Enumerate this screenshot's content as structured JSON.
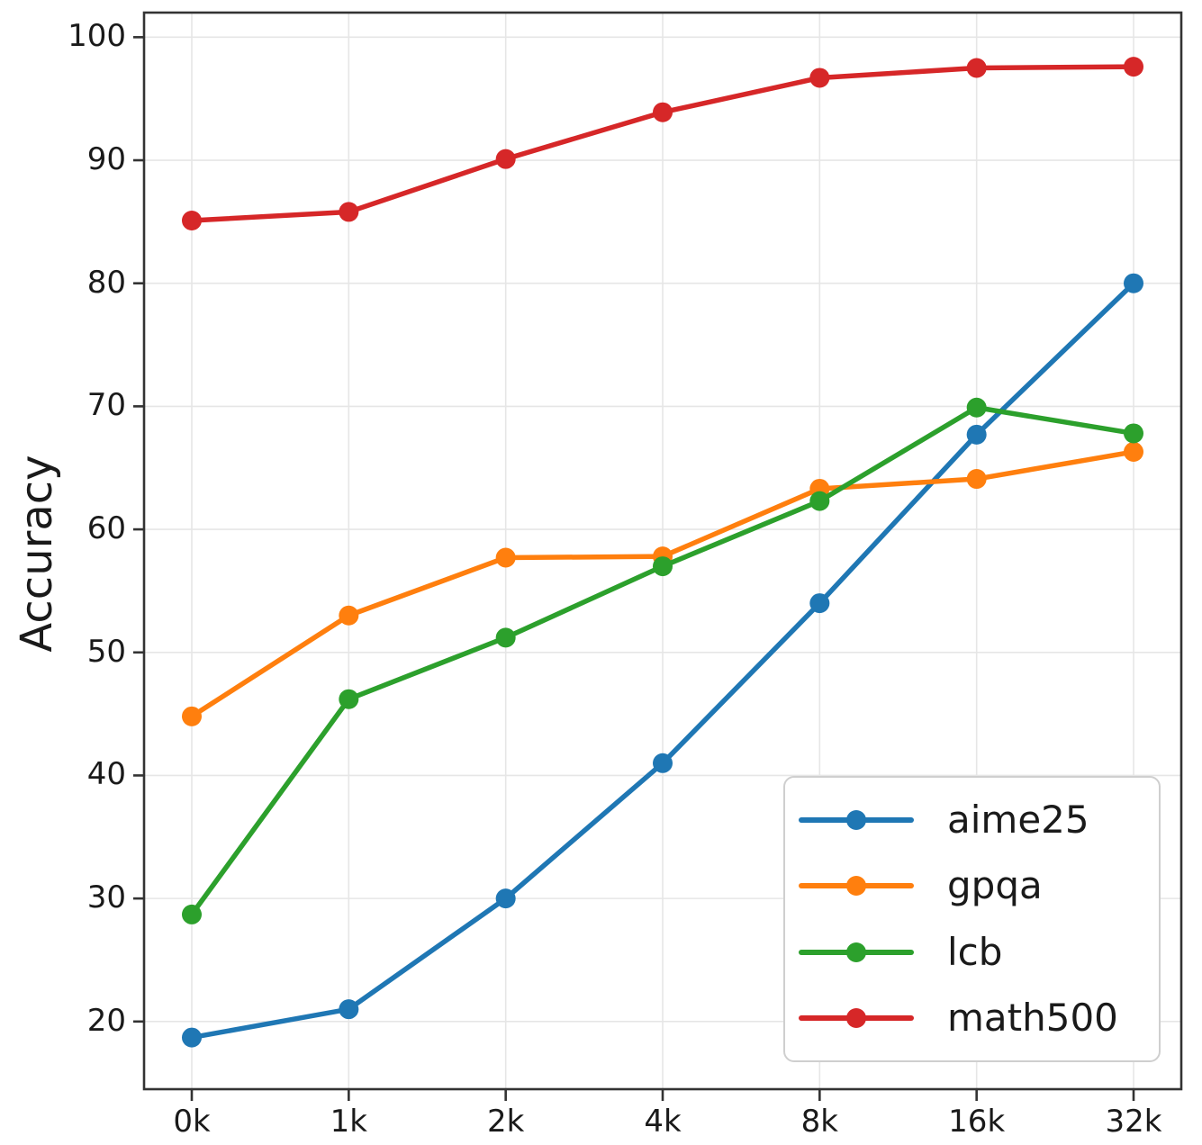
{
  "chart_data": {
    "type": "line",
    "title": "",
    "xlabel": "",
    "ylabel": "Accuracy",
    "x_tick_labels": [
      "0k",
      "1k",
      "2k",
      "4k",
      "8k",
      "16k",
      "32k"
    ],
    "y_ticks": [
      20,
      30,
      40,
      50,
      60,
      70,
      80,
      90,
      100
    ],
    "ylim": [
      14.5,
      102
    ],
    "grid": true,
    "grid_color": "#e6e6e6",
    "spine_color": "#333333",
    "tick_label_color": "#1a1a1a",
    "marker": "o",
    "legend_position": "lower right",
    "series": [
      {
        "name": "aime25",
        "color": "#1f77b4",
        "values": [
          18.7,
          21.0,
          30.0,
          41.0,
          54.0,
          67.7,
          80.0
        ]
      },
      {
        "name": "gpqa",
        "color": "#ff7f0e",
        "values": [
          44.8,
          53.0,
          57.7,
          57.8,
          63.3,
          64.1,
          66.3
        ]
      },
      {
        "name": "lcb",
        "color": "#2ca02c",
        "values": [
          28.7,
          46.2,
          51.2,
          57.0,
          62.3,
          69.9,
          67.8
        ]
      },
      {
        "name": "math500",
        "color": "#d62728",
        "values": [
          85.1,
          85.8,
          90.1,
          93.9,
          96.7,
          97.5,
          97.6
        ]
      }
    ]
  }
}
